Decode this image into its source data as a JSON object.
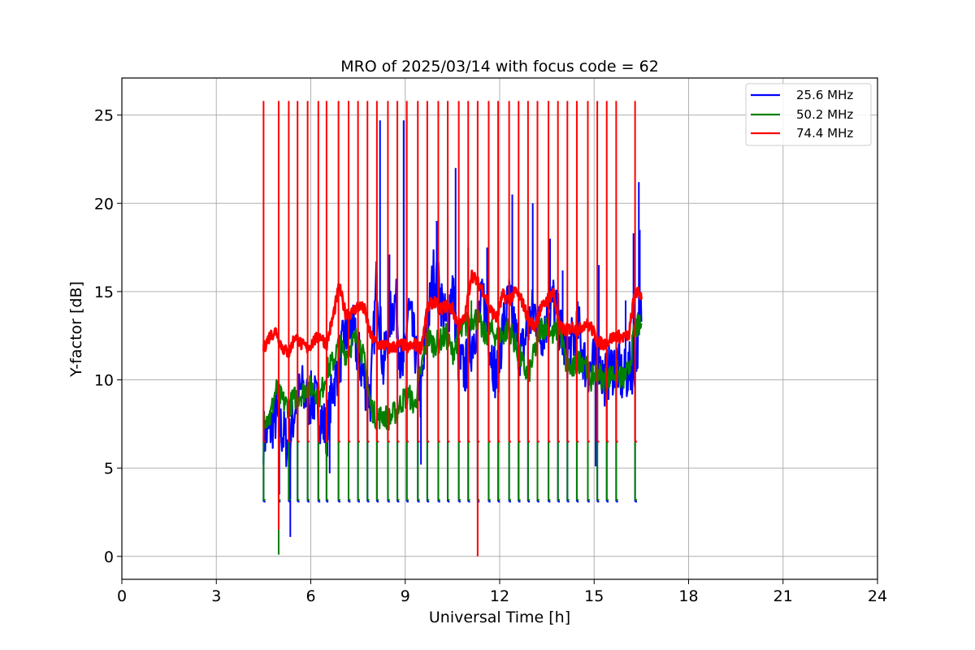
{
  "chart_data": {
    "type": "line",
    "title": "MRO of 2025/03/14 with focus code = 62",
    "xlabel": "Universal Time [h]",
    "ylabel": "Y-factor [dB]",
    "xlim": [
      0,
      24
    ],
    "ylim": [
      -1.3,
      27.1
    ],
    "xticks": [
      0,
      3,
      6,
      9,
      12,
      15,
      18,
      21,
      24
    ],
    "yticks": [
      0,
      5,
      10,
      15,
      20,
      25
    ],
    "grid": true,
    "legend_position": "top-right",
    "calibration_pulses": {
      "x": [
        4.5,
        4.98,
        5.3,
        5.58,
        5.9,
        6.24,
        6.5,
        6.88,
        7.2,
        7.5,
        7.8,
        8.1,
        8.45,
        8.75,
        9.05,
        9.4,
        9.7,
        10.05,
        10.35,
        10.7,
        11.0,
        11.3,
        11.65,
        11.95,
        12.3,
        12.6,
        12.9,
        13.2,
        13.55,
        13.85,
        14.15,
        14.45,
        14.8,
        15.1,
        15.4,
        15.7,
        16.3
      ],
      "peak": 25.8,
      "series_floor": {
        "25.6 MHz": 3.1,
        "50.2 MHz": 3.2,
        "74.4 MHz": 6.5
      }
    },
    "series": [
      {
        "name": "25.6 MHz",
        "color": "#0000ff",
        "x": [
          4.5,
          4.7,
          4.9,
          5.1,
          5.3,
          5.5,
          5.7,
          5.9,
          6.1,
          6.3,
          6.5,
          6.7,
          6.9,
          7.1,
          7.3,
          7.5,
          7.7,
          7.9,
          8.1,
          8.3,
          8.5,
          8.7,
          8.9,
          9.1,
          9.3,
          9.5,
          9.7,
          9.9,
          10.1,
          10.3,
          10.5,
          10.7,
          10.9,
          11.1,
          11.3,
          11.5,
          11.7,
          11.9,
          12.1,
          12.3,
          12.5,
          12.7,
          12.9,
          13.1,
          13.3,
          13.5,
          13.7,
          13.9,
          14.1,
          14.3,
          14.5,
          14.7,
          14.9,
          15.1,
          15.3,
          15.5,
          15.7,
          15.9,
          16.1,
          16.3,
          16.5
        ],
        "y": [
          6.8,
          7.2,
          8.0,
          7.0,
          6.2,
          8.5,
          9.5,
          8.8,
          9.0,
          8.0,
          7.0,
          9.5,
          11.0,
          12.5,
          13.0,
          11.5,
          10.0,
          9.0,
          16.0,
          10.5,
          13.5,
          14.5,
          10.0,
          14.0,
          12.0,
          9.0,
          13.0,
          16.0,
          15.0,
          13.0,
          15.5,
          11.0,
          10.5,
          12.0,
          13.5,
          14.5,
          12.0,
          10.0,
          13.0,
          14.5,
          12.5,
          11.5,
          13.0,
          14.0,
          12.5,
          13.5,
          14.5,
          13.0,
          11.5,
          12.0,
          13.0,
          11.0,
          10.5,
          11.5,
          10.0,
          10.5,
          11.0,
          10.0,
          10.5,
          11.0,
          14.0
        ],
        "noise_amplitude": 1.6,
        "spikes": [
          {
            "x": 5.0,
            "y": 3.5
          },
          {
            "x": 5.35,
            "y": 1.1
          },
          {
            "x": 6.6,
            "y": 4.7
          },
          {
            "x": 8.2,
            "y": 24.7
          },
          {
            "x": 8.5,
            "y": 17.1
          },
          {
            "x": 8.95,
            "y": 24.7
          },
          {
            "x": 9.5,
            "y": 5.2
          },
          {
            "x": 10.0,
            "y": 19.0
          },
          {
            "x": 10.35,
            "y": 19.3
          },
          {
            "x": 10.6,
            "y": 22.0
          },
          {
            "x": 11.0,
            "y": 17.5
          },
          {
            "x": 11.6,
            "y": 17.5
          },
          {
            "x": 12.4,
            "y": 20.5
          },
          {
            "x": 13.05,
            "y": 20.0
          },
          {
            "x": 13.6,
            "y": 18.0
          },
          {
            "x": 14.0,
            "y": 16.2
          },
          {
            "x": 15.15,
            "y": 16.5
          },
          {
            "x": 16.0,
            "y": 14.5
          },
          {
            "x": 16.25,
            "y": 18.3
          },
          {
            "x": 16.42,
            "y": 21.2
          },
          {
            "x": 16.45,
            "y": 18.5
          },
          {
            "x": 15.05,
            "y": 5.1
          }
        ]
      },
      {
        "name": "50.2 MHz",
        "color": "#008000",
        "x": [
          4.5,
          4.7,
          4.9,
          5.1,
          5.3,
          5.5,
          5.7,
          5.9,
          6.1,
          6.3,
          6.5,
          6.7,
          6.9,
          7.1,
          7.3,
          7.5,
          7.7,
          7.9,
          8.1,
          8.3,
          8.5,
          8.7,
          8.9,
          9.1,
          9.3,
          9.5,
          9.7,
          9.9,
          10.1,
          10.3,
          10.5,
          10.7,
          10.9,
          11.1,
          11.3,
          11.5,
          11.7,
          11.9,
          12.1,
          12.3,
          12.5,
          12.7,
          12.9,
          13.1,
          13.3,
          13.5,
          13.7,
          13.9,
          14.1,
          14.3,
          14.5,
          14.7,
          14.9,
          15.1,
          15.3,
          15.5,
          15.7,
          15.9,
          16.1,
          16.3,
          16.5
        ],
        "y": [
          8.0,
          7.8,
          9.5,
          8.8,
          8.5,
          9.0,
          9.2,
          9.6,
          9.5,
          9.0,
          10.5,
          11.0,
          12.0,
          11.5,
          12.0,
          12.5,
          11.0,
          8.5,
          7.8,
          8.0,
          7.8,
          8.2,
          8.8,
          9.2,
          8.5,
          10.5,
          12.5,
          12.0,
          12.2,
          12.5,
          11.5,
          12.5,
          13.0,
          13.5,
          13.5,
          12.5,
          12.8,
          12.5,
          12.5,
          13.0,
          12.0,
          11.0,
          10.2,
          11.5,
          13.0,
          13.0,
          12.5,
          13.0,
          11.0,
          10.5,
          11.0,
          11.2,
          10.0,
          10.5,
          10.0,
          10.2,
          10.5,
          10.0,
          10.5,
          13.0,
          13.0
        ],
        "noise_amplitude": 0.7,
        "spikes": [
          {
            "x": 4.98,
            "y": 0.1
          },
          {
            "x": 11.1,
            "y": 14.5
          }
        ]
      },
      {
        "name": "74.4 MHz",
        "color": "#ff0000",
        "x": [
          4.5,
          4.7,
          4.9,
          5.1,
          5.3,
          5.5,
          5.7,
          5.9,
          6.1,
          6.3,
          6.5,
          6.7,
          6.9,
          7.1,
          7.3,
          7.5,
          7.7,
          7.9,
          8.1,
          8.3,
          8.5,
          8.7,
          8.9,
          9.1,
          9.3,
          9.5,
          9.7,
          9.9,
          10.1,
          10.3,
          10.5,
          10.7,
          10.9,
          11.1,
          11.3,
          11.5,
          11.7,
          11.9,
          12.1,
          12.3,
          12.5,
          12.7,
          12.9,
          13.1,
          13.3,
          13.5,
          13.7,
          13.9,
          14.1,
          14.3,
          14.5,
          14.7,
          14.9,
          15.1,
          15.3,
          15.5,
          15.7,
          15.9,
          16.1,
          16.3,
          16.5
        ],
        "y": [
          11.8,
          12.5,
          12.8,
          11.8,
          11.5,
          12.5,
          12.0,
          11.8,
          12.2,
          12.5,
          12.0,
          13.5,
          15.3,
          13.8,
          13.8,
          14.2,
          14.0,
          12.5,
          12.0,
          12.0,
          11.8,
          11.9,
          12.0,
          11.8,
          12.0,
          11.8,
          14.0,
          14.5,
          14.0,
          14.2,
          14.0,
          13.0,
          13.5,
          16.0,
          15.5,
          15.0,
          14.0,
          13.5,
          14.8,
          14.5,
          15.0,
          14.5,
          13.5,
          13.0,
          14.0,
          14.5,
          15.0,
          13.0,
          12.8,
          13.0,
          12.8,
          13.2,
          13.0,
          12.2,
          12.0,
          12.3,
          12.5,
          12.4,
          12.5,
          15.0,
          14.8
        ],
        "noise_amplitude": 0.35,
        "spikes": [
          {
            "x": 11.3,
            "y": 0.0
          },
          {
            "x": 4.98,
            "y": 1.5
          }
        ]
      }
    ]
  }
}
